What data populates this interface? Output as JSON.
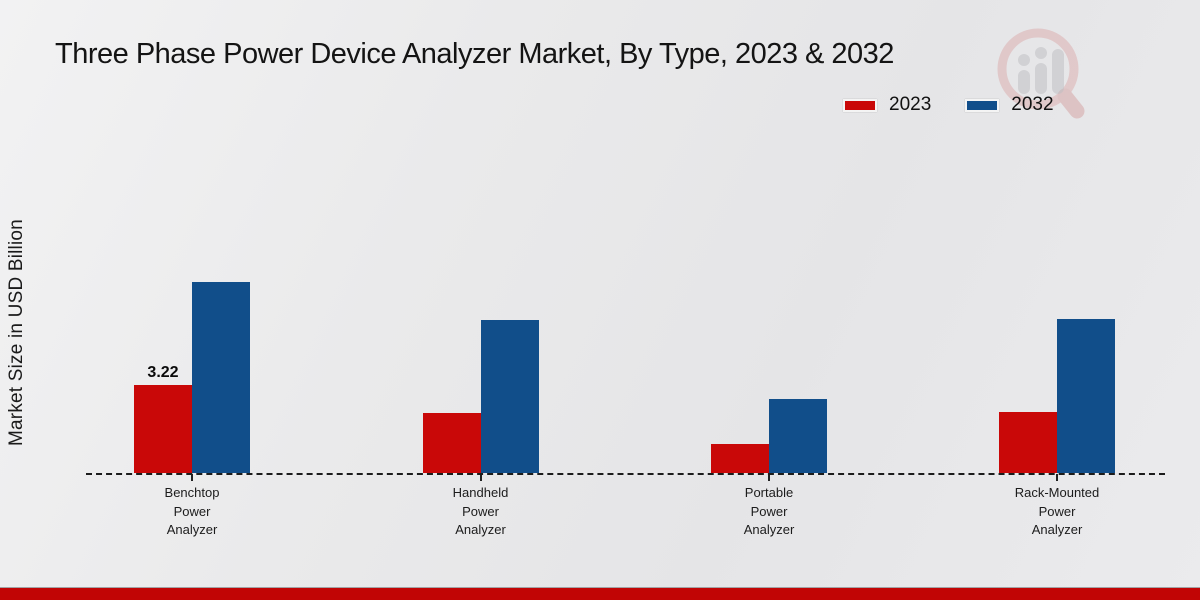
{
  "title": "Three Phase Power Device Analyzer Market, By Type, 2023 & 2032",
  "y_axis_label": "Market Size in USD Billion",
  "legend": {
    "items": [
      {
        "label": "2023",
        "color": "#c90808"
      },
      {
        "label": "2032",
        "color": "#114e8a"
      }
    ]
  },
  "watermark": {
    "name": "market-research-logo",
    "ring_color": "#d89a9a",
    "bars_color": "#b9b9bd"
  },
  "footer": {
    "accent_color": "#c10505"
  },
  "chart_data": {
    "type": "bar",
    "title": "Three Phase Power Device Analyzer Market, By Type, 2023 & 2032",
    "xlabel": "",
    "ylabel": "Market Size in USD Billion",
    "categories": [
      "Benchtop Power Analyzer",
      "Handheld Power Analyzer",
      "Portable Power Analyzer",
      "Rack-Mounted Power Analyzer"
    ],
    "series": [
      {
        "name": "2023",
        "color": "#c90808",
        "values": [
          3.22,
          2.2,
          1.05,
          2.25
        ]
      },
      {
        "name": "2032",
        "color": "#114e8a",
        "values": [
          7.0,
          5.6,
          2.7,
          5.65
        ]
      }
    ],
    "data_labels": [
      {
        "series_index": 0,
        "category_index": 0,
        "text": "3.22"
      }
    ],
    "ylim": [
      0,
      7.5
    ],
    "grid": false,
    "baseline_style": "dashed",
    "legend_position": "top-right"
  }
}
